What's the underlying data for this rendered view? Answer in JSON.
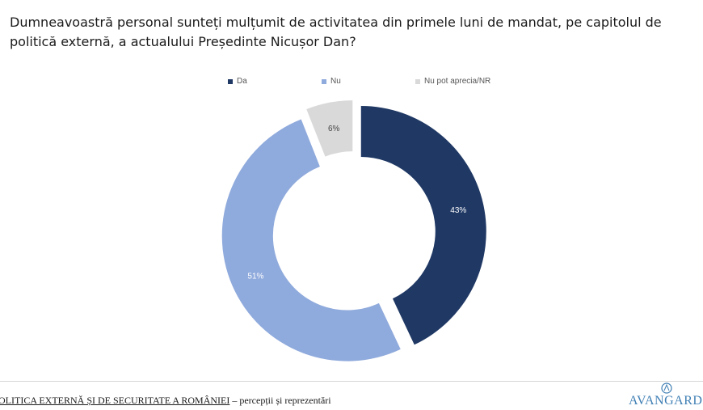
{
  "question": "Dumneavoastră personal sunteți mulțumit de activitatea din primele luni de mandat, pe capitolul de politică externă, a actualului Președinte Nicușor Dan?",
  "chart_data": {
    "type": "pie",
    "donut": true,
    "categories": [
      "Da",
      "Nu",
      "Nu pot aprecia/NR"
    ],
    "values": [
      43,
      51,
      6
    ],
    "value_labels": [
      "43%",
      "51%",
      "6%"
    ],
    "colors": [
      "#1f3864",
      "#8faadc",
      "#d9d9d9"
    ],
    "label_colors": [
      "#ffffff",
      "#ffffff",
      "#444444"
    ],
    "exploded": true,
    "legend_position": "top"
  },
  "footer": {
    "title_underlined": "OLITICA EXTERNĂ ȘI DE SECURITATE A ROMÂNIEI",
    "title_rest": " – percepții și reprezentări",
    "logo_text": "AVANGARDE"
  }
}
